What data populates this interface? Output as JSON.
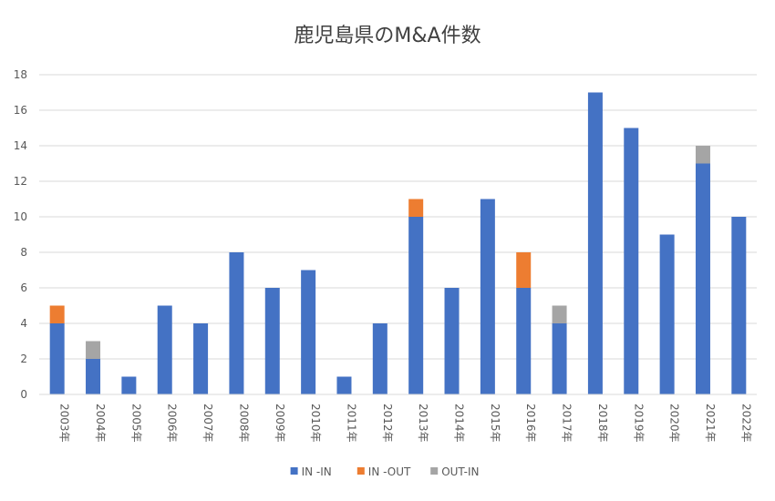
{
  "chart_data": {
    "type": "bar",
    "stacked": true,
    "title": "鹿児島県のM&A件数",
    "xlabel": "",
    "ylabel": "",
    "categories": [
      "2003年",
      "2004年",
      "2005年",
      "2006年",
      "2007年",
      "2008年",
      "2009年",
      "2010年",
      "2011年",
      "2012年",
      "2013年",
      "2014年",
      "2015年",
      "2016年",
      "2017年",
      "2018年",
      "2019年",
      "2020年",
      "2021年",
      "2022年"
    ],
    "series": [
      {
        "name": "IN -IN",
        "color": "#4472C4",
        "values": [
          4,
          2,
          1,
          5,
          4,
          8,
          6,
          7,
          1,
          4,
          10,
          6,
          11,
          6,
          4,
          17,
          15,
          9,
          13,
          10
        ]
      },
      {
        "name": "IN -OUT",
        "color": "#ED7D31",
        "values": [
          1,
          0,
          0,
          0,
          0,
          0,
          0,
          0,
          0,
          0,
          1,
          0,
          0,
          2,
          0,
          0,
          0,
          0,
          0,
          0
        ]
      },
      {
        "name": "OUT-IN",
        "color": "#A5A5A5",
        "values": [
          0,
          1,
          0,
          0,
          0,
          0,
          0,
          0,
          0,
          0,
          0,
          0,
          0,
          0,
          1,
          0,
          0,
          0,
          1,
          0
        ]
      }
    ],
    "ylim": [
      0,
      18
    ],
    "yticks": [
      0,
      2,
      4,
      6,
      8,
      10,
      12,
      14,
      16,
      18
    ],
    "grid": true,
    "legend": "bottom"
  }
}
